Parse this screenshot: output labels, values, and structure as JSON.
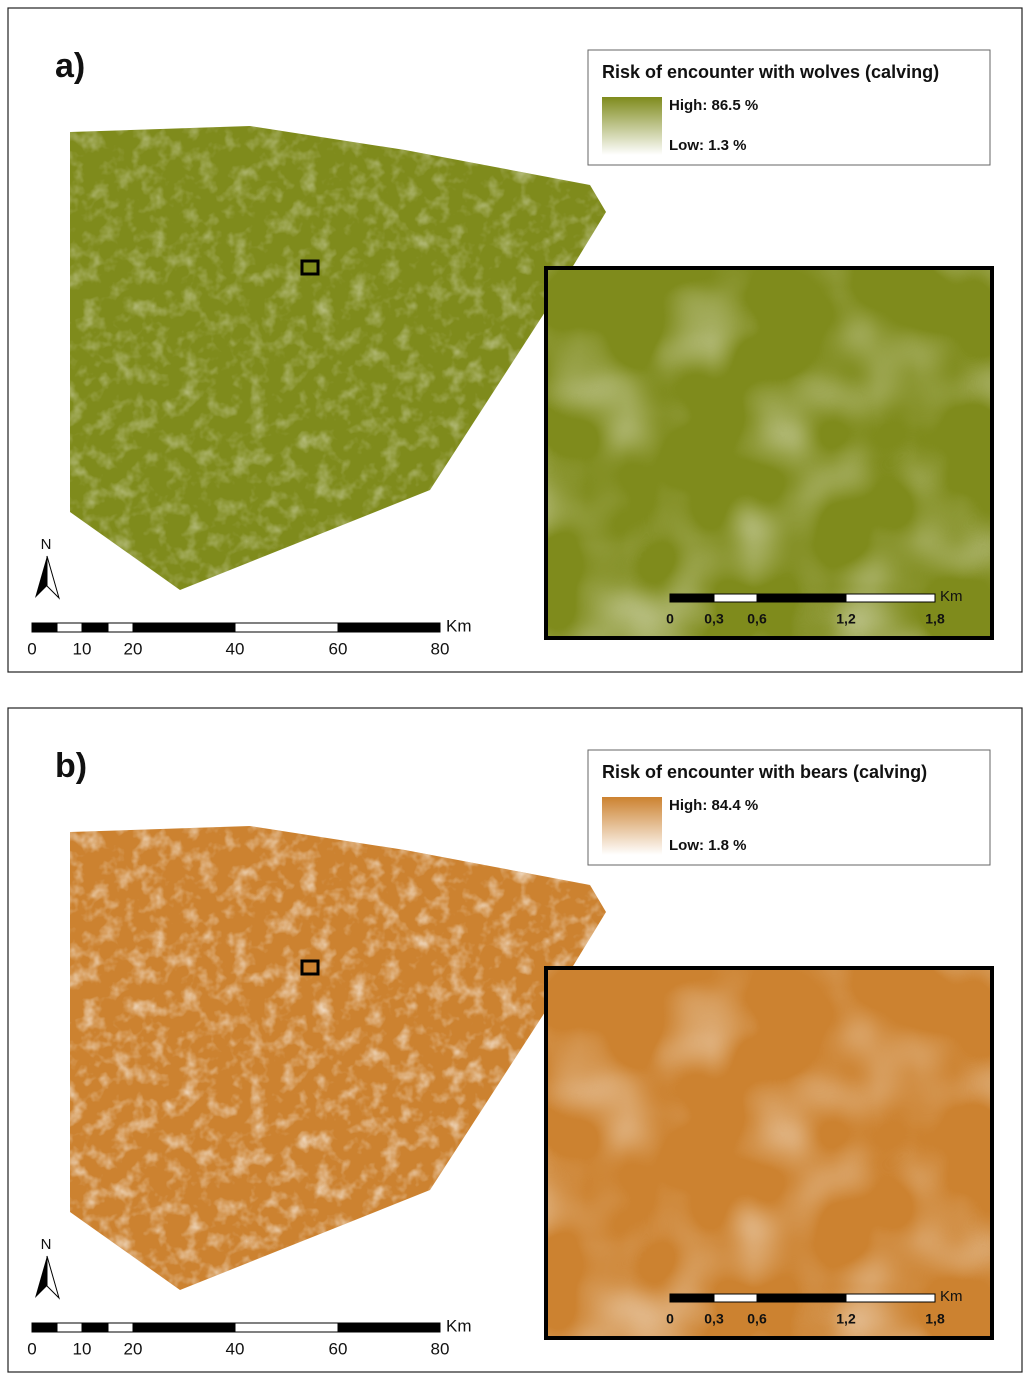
{
  "panels": [
    {
      "label": "a)",
      "color": "#7f8b1c",
      "legend": {
        "title": "Risk of encounter with wolves (calving)",
        "high": "High: 86.5 %",
        "low": "Low: 1.3 %"
      },
      "north": "N",
      "scale": {
        "unit": "Km",
        "ticks": [
          "0",
          "10",
          "20",
          "40",
          "60",
          "80"
        ]
      },
      "inset_scale": {
        "unit": "Km",
        "ticks": [
          "0",
          "0,3",
          "0,6",
          "1,2",
          "1,8"
        ]
      }
    },
    {
      "label": "b)",
      "color": "#cc8230",
      "legend": {
        "title": "Risk of encounter with bears (calving)",
        "high": "High: 84.4 %",
        "low": "Low: 1.8 %"
      },
      "north": "N",
      "scale": {
        "unit": "Km",
        "ticks": [
          "0",
          "10",
          "20",
          "40",
          "60",
          "80"
        ]
      },
      "inset_scale": {
        "unit": "Km",
        "ticks": [
          "0",
          "0,3",
          "0,6",
          "1,2",
          "1,8"
        ]
      }
    }
  ]
}
